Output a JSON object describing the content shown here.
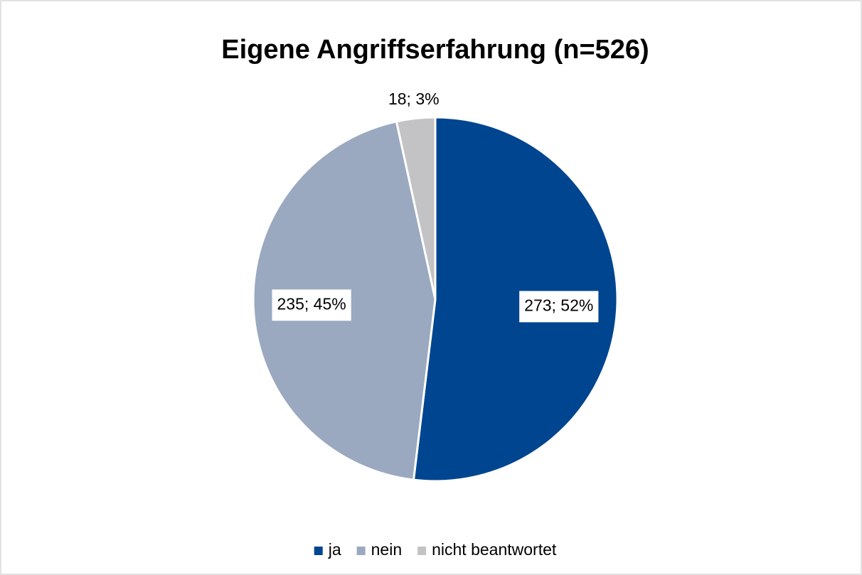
{
  "chart_data": {
    "type": "pie",
    "title": "Eigene Angriffserfahrung (n=526)",
    "categories": [
      "ja",
      "nein",
      "nicht beantwortet"
    ],
    "values": [
      273,
      235,
      18
    ],
    "value_labels": [
      "273; 52%",
      "235; 45%",
      "18; 3%"
    ],
    "colors": [
      "#00458f",
      "#9aa9bf",
      "#c3c3c5"
    ],
    "legend": "bottom"
  }
}
